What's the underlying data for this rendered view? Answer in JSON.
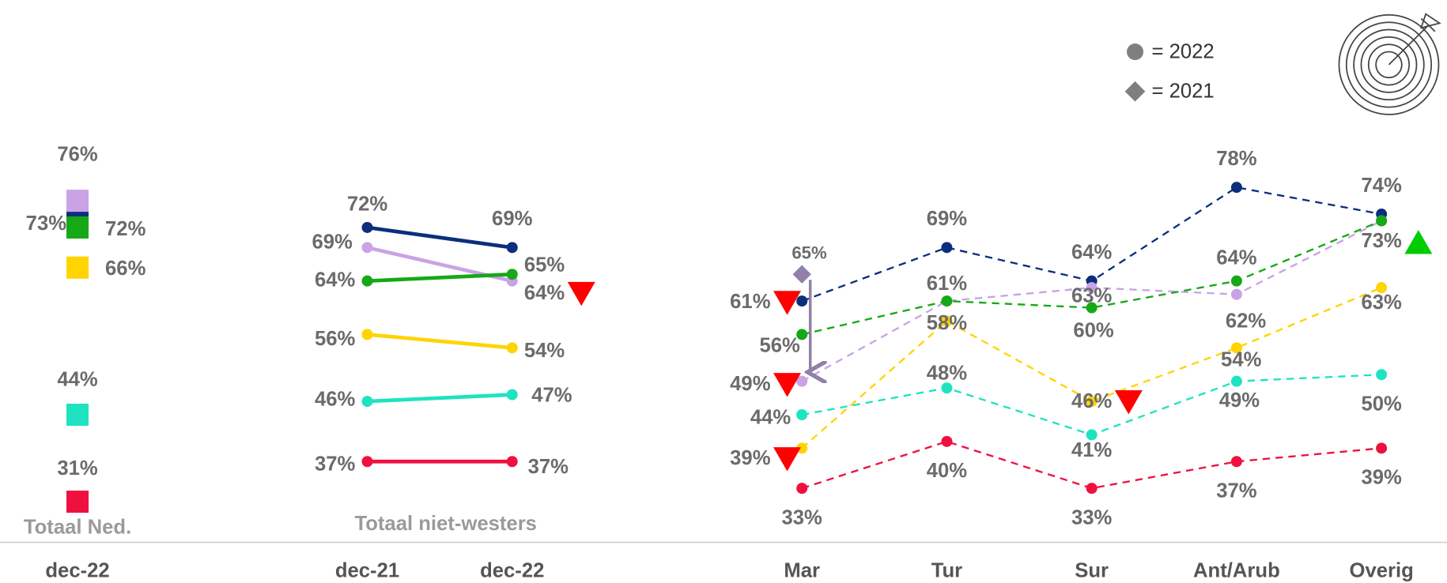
{
  "legend": [
    "= 2022",
    "= 2021"
  ],
  "chart_data": [
    {
      "type": "dot",
      "title": "Totaal Ned.",
      "categories": [
        "dec-22"
      ],
      "ylim": [
        20,
        90
      ],
      "series": [
        {
          "color": "#0b2f7d",
          "values": [
            73
          ],
          "value_labels": [
            "73%"
          ]
        },
        {
          "color": "#c9a3e6",
          "values": [
            76
          ],
          "value_labels": [
            "76%"
          ]
        },
        {
          "color": "#16a816",
          "values": [
            72
          ],
          "value_labels": [
            "72%"
          ]
        },
        {
          "color": "#ffd400",
          "values": [
            66
          ],
          "value_labels": [
            "66%"
          ]
        },
        {
          "color": "#1ee3c0",
          "values": [
            44
          ],
          "value_labels": [
            "44%"
          ]
        },
        {
          "color": "#ee1140",
          "values": [
            31
          ],
          "value_labels": [
            "31%"
          ]
        }
      ]
    },
    {
      "type": "line",
      "dashed": false,
      "title": "Totaal niet-westers",
      "categories": [
        "dec-21",
        "dec-22"
      ],
      "ylim": [
        20,
        90
      ],
      "series": [
        {
          "color": "#0b2f7d",
          "values": [
            72,
            69
          ],
          "value_labels": [
            "72%",
            "69%"
          ]
        },
        {
          "color": "#c9a3e6",
          "values": [
            69,
            64
          ],
          "value_labels": [
            "69%",
            "64%"
          ],
          "significance": [
            null,
            "down"
          ]
        },
        {
          "color": "#16a816",
          "values": [
            64,
            65
          ],
          "value_labels": [
            "64%",
            "65%"
          ]
        },
        {
          "color": "#ffd400",
          "values": [
            56,
            54
          ],
          "value_labels": [
            "56%",
            "54%"
          ]
        },
        {
          "color": "#1ee3c0",
          "values": [
            46,
            47
          ],
          "value_labels": [
            "46%",
            "47%"
          ]
        },
        {
          "color": "#ee1140",
          "values": [
            37,
            37
          ],
          "value_labels": [
            "37%",
            "37%"
          ]
        }
      ]
    },
    {
      "type": "line",
      "dashed": true,
      "categories": [
        "Mar",
        "Tur",
        "Sur",
        "Ant/Arub",
        "Overig"
      ],
      "ylim": [
        20,
        90
      ],
      "series": [
        {
          "color": "#0b2f7d",
          "values": [
            61,
            69,
            64,
            78,
            74
          ],
          "value_labels": [
            "61%",
            "69%",
            "64%",
            "78%",
            "74%"
          ],
          "significance": [
            "down",
            null,
            null,
            null,
            null
          ]
        },
        {
          "color": "#c9a3e6",
          "values": [
            49,
            61,
            63,
            62,
            73
          ],
          "value_labels": [
            "49%",
            null,
            "63%",
            "62%",
            null
          ],
          "significance": [
            "down",
            null,
            null,
            null,
            null
          ],
          "values_2021": [
            65,
            null,
            null,
            null,
            null
          ],
          "value_labels_2021": [
            "65%",
            null,
            null,
            null,
            null
          ]
        },
        {
          "color": "#16a816",
          "values": [
            56,
            61,
            60,
            64,
            73
          ],
          "value_labels": [
            "56%",
            "61%",
            "60%",
            "64%",
            "73%"
          ],
          "significance": [
            null,
            null,
            null,
            null,
            "up"
          ]
        },
        {
          "color": "#ffd400",
          "values": [
            39,
            58,
            46,
            54,
            63
          ],
          "value_labels": [
            "39%",
            "58%",
            "46%",
            "54%",
            "63%"
          ],
          "significance": [
            "down",
            null,
            "down",
            null,
            null
          ]
        },
        {
          "color": "#1ee3c0",
          "values": [
            44,
            48,
            41,
            49,
            50
          ],
          "value_labels": [
            "44%",
            "48%",
            "41%",
            "49%",
            "50%"
          ]
        },
        {
          "color": "#ee1140",
          "values": [
            33,
            40,
            33,
            37,
            39
          ],
          "value_labels": [
            "33%",
            "40%",
            "33%",
            "37%",
            "39%"
          ]
        }
      ]
    }
  ]
}
